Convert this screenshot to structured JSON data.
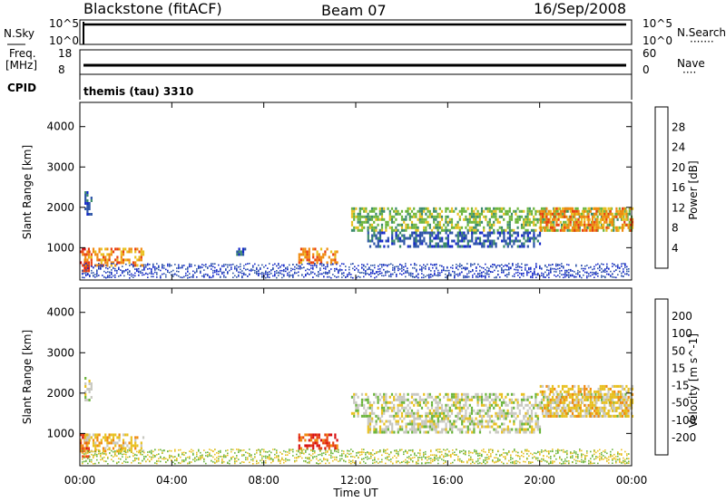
{
  "header": {
    "station": "Blackstone (fitACF)",
    "beam": "Beam 07",
    "date": "16/Sep/2008"
  },
  "noise_panel": {
    "left_label": "N.Sky",
    "right_label": "N.Search",
    "left_ticks": [
      "10^5",
      "10^0"
    ],
    "right_ticks": [
      "10^5",
      "10^0"
    ]
  },
  "freq_panel": {
    "left_label_1": "Freq.",
    "left_label_2": "[MHz]",
    "right_label": "Nave",
    "left_ticks": [
      "18",
      "8"
    ],
    "right_ticks": [
      "60",
      "0"
    ]
  },
  "cpid_panel": {
    "label": "CPID",
    "text": "themis (tau) 3310"
  },
  "x_axis": {
    "label": "Time UT",
    "ticks": [
      "00:00",
      "04:00",
      "08:00",
      "12:00",
      "16:00",
      "20:00",
      "00:00"
    ]
  },
  "chart_data": [
    {
      "type": "heatmap",
      "title": "",
      "ylabel": "Slant Range [km]",
      "xlabel": "",
      "yticks": [
        "1000",
        "2000",
        "3000",
        "4000"
      ],
      "ylim": [
        200,
        4600
      ],
      "xlim_hours": [
        0,
        24
      ],
      "colorbar": {
        "label": "Power [dB]",
        "ticks": [
          "4",
          "8",
          "12",
          "16",
          "20",
          "24",
          "28"
        ],
        "colors": [
          "#1428c8",
          "#2e55a8",
          "#3a8a6a",
          "#6cb53c",
          "#e8c020",
          "#f08a10",
          "#e84010",
          "#d81010"
        ]
      },
      "echo_regions": [
        {
          "t0": 0.0,
          "t1": 0.4,
          "r0": 400,
          "r1": 1000,
          "level": 6
        },
        {
          "t0": 0.2,
          "t1": 2.8,
          "r0": 550,
          "r1": 1000,
          "level": 5
        },
        {
          "t0": 0.2,
          "t1": 0.5,
          "r0": 1800,
          "r1": 2400,
          "level": 1
        },
        {
          "t0": 6.8,
          "t1": 7.2,
          "r0": 800,
          "r1": 1000,
          "level": 1
        },
        {
          "t0": 9.5,
          "t1": 11.2,
          "r0": 600,
          "r1": 1000,
          "level": 5
        },
        {
          "t0": 11.8,
          "t1": 24.0,
          "r0": 1400,
          "r1": 2000,
          "level": 3
        },
        {
          "t0": 12.5,
          "t1": 20.0,
          "r0": 1000,
          "r1": 1400,
          "level": 1
        },
        {
          "t0": 20.0,
          "t1": 24.0,
          "r0": 1400,
          "r1": 2000,
          "level": 5
        }
      ]
    },
    {
      "type": "heatmap",
      "title": "",
      "ylabel": "Slant Range [km]",
      "xlabel": "Time UT",
      "yticks": [
        "1000",
        "2000",
        "3000",
        "4000"
      ],
      "ylim": [
        200,
        4600
      ],
      "xlim_hours": [
        0,
        24
      ],
      "colorbar": {
        "label": "Velocity [m s^-1]",
        "ticks": [
          "200",
          "100",
          "50",
          "15",
          "-15",
          "-50",
          "-100",
          "-200"
        ],
        "colors": [
          "#1428c8",
          "#2e55a8",
          "#3a8a6a",
          "#6cb53c",
          "#c8c8c0",
          "#e8c020",
          "#f08a10",
          "#e84010",
          "#d81010"
        ]
      },
      "echo_regions": [
        {
          "t0": 0.0,
          "t1": 0.4,
          "r0": 400,
          "r1": 1000,
          "level": 7
        },
        {
          "t0": 0.2,
          "t1": 2.8,
          "r0": 550,
          "r1": 1000,
          "level": 5
        },
        {
          "t0": 0.2,
          "t1": 0.5,
          "r0": 1800,
          "r1": 2400,
          "level": 4
        },
        {
          "t0": 9.5,
          "t1": 11.2,
          "r0": 600,
          "r1": 1000,
          "level": 7
        },
        {
          "t0": 11.8,
          "t1": 24.0,
          "r0": 1400,
          "r1": 2000,
          "level": 4
        },
        {
          "t0": 12.5,
          "t1": 20.0,
          "r0": 1000,
          "r1": 1400,
          "level": 4
        },
        {
          "t0": 20.0,
          "t1": 24.0,
          "r0": 1400,
          "r1": 2200,
          "level": 5
        }
      ]
    }
  ]
}
